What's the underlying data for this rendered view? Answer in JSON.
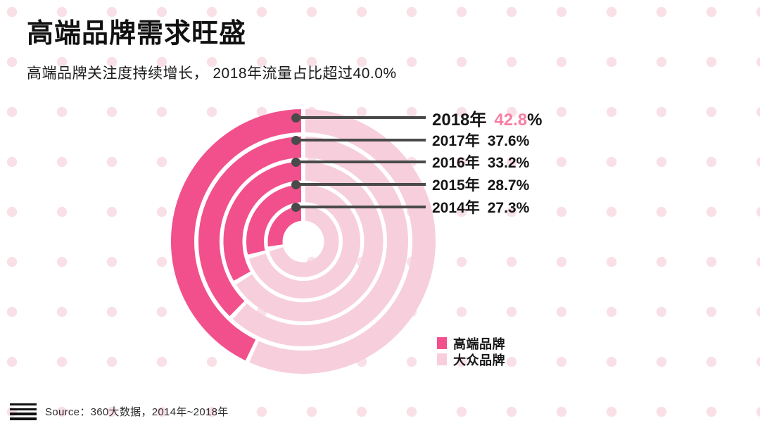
{
  "page": {
    "title": "高端品牌需求旺盛",
    "subtitle": "高端品牌关注度持续增长， 2018年流量占比超过40.0%",
    "source": "Source：360大数据，2014年~2018年"
  },
  "colors": {
    "brand_pink": "#F2508C",
    "light_pink": "#F7CEDC",
    "highlight_value_pink": "#F97EA4",
    "leader_gray": "#4A4A4B",
    "background_dot_pink": "#F9E0E7",
    "text_black": "#1A1A1A"
  },
  "legend": [
    {
      "label": "高端品牌",
      "color": "#F2508C"
    },
    {
      "label": "大众品牌",
      "color": "#F7CEDC"
    }
  ],
  "chart_data": {
    "type": "pie",
    "variant": "concentric-donut-rings",
    "unit": "%",
    "title": "高端品牌需求旺盛",
    "subtitle": "高端品牌关注度持续增长，2018年流量占比超过40.0%",
    "categories": [
      "2018年",
      "2017年",
      "2016年",
      "2015年",
      "2014年"
    ],
    "series": [
      {
        "name": "高端品牌",
        "values": [
          42.8,
          37.6,
          33.2,
          28.7,
          27.3
        ]
      },
      {
        "name": "大众品牌",
        "values": [
          57.2,
          62.4,
          66.8,
          71.3,
          72.7
        ]
      }
    ],
    "rings_order": "outer-to-inner: 2018 to 2014",
    "arc_start": "top",
    "arc_direction": "counterclockwise",
    "legend_position": "bottom-right",
    "callouts": [
      {
        "year": "2018年",
        "value": "42.8",
        "suffix": "%",
        "highlight": true
      },
      {
        "year": "2017年",
        "value": "37.6",
        "suffix": "%",
        "highlight": false
      },
      {
        "year": "2016年",
        "value": "33.2",
        "suffix": "%",
        "highlight": false
      },
      {
        "year": "2015年",
        "value": "28.7",
        "suffix": "%",
        "highlight": false
      },
      {
        "year": "2014年",
        "value": "27.3",
        "suffix": "%",
        "highlight": false
      }
    ]
  }
}
